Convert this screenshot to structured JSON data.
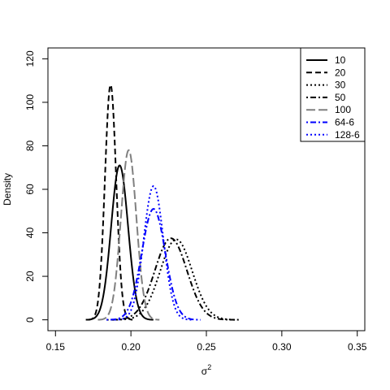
{
  "chart_data": {
    "type": "line",
    "title": "",
    "xlabel": "σ",
    "xlabel_superscript": "2",
    "ylabel": "Density",
    "xlim": [
      0.145,
      0.355
    ],
    "ylim": [
      -5,
      125
    ],
    "xticks": [
      0.15,
      0.2,
      0.25,
      0.3,
      0.35
    ],
    "xtick_labels": [
      "0.15",
      "0.20",
      "0.25",
      "0.30",
      "0.35"
    ],
    "yticks": [
      0,
      20,
      40,
      60,
      80,
      100,
      120
    ],
    "ytick_labels": [
      "0",
      "20",
      "40",
      "60",
      "80",
      "100",
      "120"
    ],
    "grid": false,
    "legend_position": "top-right",
    "series": [
      {
        "name": "10",
        "mu": 0.1925,
        "sigma": 0.0056,
        "peak": 71,
        "color": "#000000",
        "dash": "solid"
      },
      {
        "name": "20",
        "mu": 0.1865,
        "sigma": 0.0037,
        "peak": 108,
        "color": "#000000",
        "dash": "dashed"
      },
      {
        "name": "30",
        "mu": 0.23,
        "sigma": 0.0106,
        "peak": 37,
        "color": "#000000",
        "dash": "dotted"
      },
      {
        "name": "50",
        "mu": 0.2265,
        "sigma": 0.0106,
        "peak": 37.5,
        "color": "#000000",
        "dash": "dotdash"
      },
      {
        "name": "100",
        "mu": 0.1985,
        "sigma": 0.0051,
        "peak": 78,
        "color": "#808080",
        "dash": "longdash"
      },
      {
        "name": "64-6",
        "mu": 0.215,
        "sigma": 0.0078,
        "peak": 51,
        "color": "#0000ff",
        "dash": "dotdash"
      },
      {
        "name": "128-6",
        "mu": 0.215,
        "sigma": 0.0065,
        "peak": 61.5,
        "color": "#0000ff",
        "dash": "dotted"
      }
    ]
  }
}
